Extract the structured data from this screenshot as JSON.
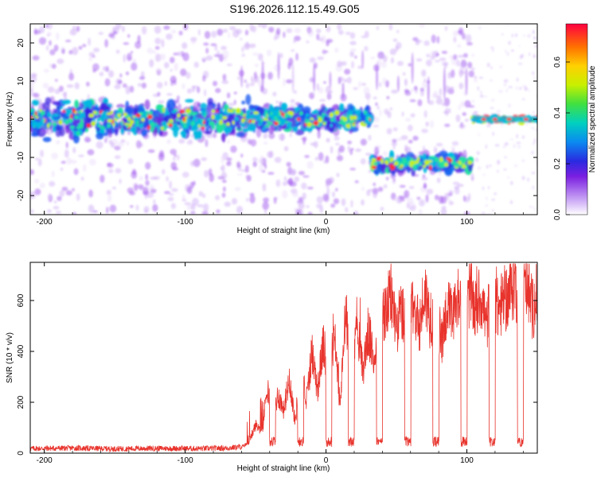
{
  "title": "S196.2026.112.15.49.G05",
  "chart_data": [
    {
      "type": "heatmap",
      "xlabel": "Height of straight line (km)",
      "ylabel": "Frequency (Hz)",
      "xlim": [
        -210,
        150
      ],
      "ylim": [
        -25,
        25
      ],
      "xticks": [
        "-200",
        "-100",
        "0",
        "100"
      ],
      "xtick_values": [
        -200,
        -100,
        0,
        100
      ],
      "yticks": [
        "-20",
        "-10",
        "0",
        "10",
        "20"
      ],
      "ytick_values": [
        -20,
        -10,
        0,
        10,
        20
      ],
      "colorbar": {
        "label": "Normalized spectral amplitude",
        "ticks": [
          "0.0",
          "0.2",
          "0.4",
          "0.6"
        ],
        "tick_values": [
          0.0,
          0.2,
          0.4,
          0.6
        ],
        "range": [
          0,
          0.75
        ]
      },
      "segments": [
        {
          "x0": -210,
          "x1": -55,
          "center_hz": 0,
          "spread_hz": 4
        },
        {
          "x0": -55,
          "x1": 32,
          "center_hz": 0,
          "spread_hz": 3
        },
        {
          "x0": 32,
          "x1": 103,
          "center_hz": -11.5,
          "spread_hz": 2
        },
        {
          "x0": 104,
          "x1": 150,
          "center_hz": 0,
          "spread_hz": 0.8
        }
      ]
    },
    {
      "type": "line",
      "xlabel": "Height of straight line (km)",
      "ylabel": "SNR (10 * v/v)",
      "xlim": [
        -210,
        150
      ],
      "ylim": [
        0,
        750
      ],
      "xticks": [
        "-200",
        "-100",
        "0",
        "100"
      ],
      "xtick_values": [
        -200,
        -100,
        0,
        100
      ],
      "yticks": [
        "0",
        "200",
        "400",
        "600"
      ],
      "ytick_values": [
        0,
        200,
        400,
        600
      ],
      "color": "#e8332c",
      "series": [
        {
          "name": "SNR",
          "x": [
            -210,
            -180,
            -150,
            -120,
            -90,
            -70,
            -60,
            -55,
            -50,
            -45,
            -42,
            -38,
            -34,
            -30,
            -26,
            -22,
            -18,
            -14,
            -10,
            -6,
            -2,
            2,
            6,
            10,
            14,
            18,
            22,
            26,
            30,
            34,
            38,
            42,
            46,
            50,
            54,
            58,
            62,
            66,
            70,
            74,
            78,
            82,
            86,
            90,
            94,
            98,
            102,
            106,
            110,
            114,
            118,
            122,
            126,
            130,
            134,
            138,
            142,
            146,
            150
          ],
          "values": [
            18,
            20,
            17,
            19,
            18,
            20,
            25,
            40,
            110,
            90,
            260,
            150,
            230,
            170,
            300,
            120,
            330,
            200,
            400,
            250,
            430,
            300,
            470,
            180,
            560,
            260,
            520,
            320,
            480,
            360,
            580,
            540,
            620,
            500,
            560,
            420,
            600,
            480,
            640,
            520,
            560,
            440,
            580,
            520,
            620,
            480,
            640,
            560,
            620,
            500,
            660,
            560,
            600,
            620,
            680,
            580,
            700,
            560,
            620
          ]
        }
      ],
      "dips_x": [
        -38,
        -18,
        2,
        18,
        38,
        58,
        78,
        98,
        118,
        138
      ]
    }
  ]
}
